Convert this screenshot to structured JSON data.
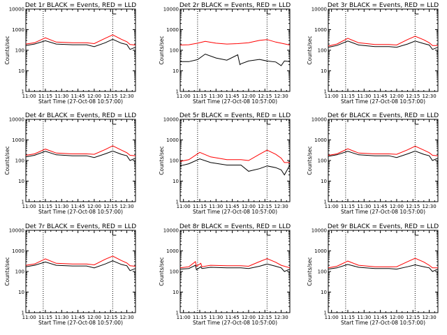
{
  "figure": {
    "colors": {
      "events": "#000000",
      "lld": "#ff0000"
    },
    "y_tick_labels": [
      "1",
      "10",
      "100",
      "1000",
      "10000"
    ],
    "x_tick_labels": [
      "11:00",
      "11:15",
      "11:30",
      "11:45",
      "12:00",
      "12:15",
      "12:30"
    ]
  },
  "chart_data": [
    {
      "type": "line",
      "title": "Det 1r BLACK = Events, RED = LLD",
      "xlabel": "Start Time (27-Oct-08 10:57:00)",
      "ylabel": "Counts/sec",
      "y_scale": "log",
      "ylim": [
        1,
        10000
      ],
      "xlim": [
        "10:57",
        "12:38"
      ],
      "vertical_markers": [
        "11:13",
        "12:17"
      ],
      "series": [
        {
          "name": "Events",
          "x": [
            "10:57",
            "11:05",
            "11:15",
            "11:25",
            "11:40",
            "11:53",
            "12:00",
            "12:10",
            "12:17",
            "12:25",
            "12:30",
            "12:33",
            "12:38"
          ],
          "values": [
            170,
            200,
            290,
            200,
            185,
            185,
            150,
            230,
            340,
            220,
            190,
            110,
            140
          ]
        },
        {
          "name": "LLD",
          "x": [
            "10:57",
            "11:05",
            "11:15",
            "11:25",
            "11:40",
            "11:53",
            "12:00",
            "12:10",
            "12:17",
            "12:25",
            "12:30",
            "12:33",
            "12:38"
          ],
          "values": [
            200,
            230,
            400,
            250,
            230,
            230,
            210,
            380,
            560,
            340,
            260,
            190,
            180
          ]
        }
      ]
    },
    {
      "type": "line",
      "title": "Det 2r BLACK = Events, RED = LLD",
      "xlabel": "Start Time (27-Oct-08 10:57:00)",
      "ylabel": "Counts/sec",
      "y_scale": "log",
      "ylim": [
        1,
        10000
      ],
      "xlim": [
        "10:57",
        "12:38"
      ],
      "vertical_markers": [
        "11:13",
        "12:17"
      ],
      "series": [
        {
          "name": "Events",
          "x": [
            "10:57",
            "11:05",
            "11:13",
            "11:20",
            "11:30",
            "11:40",
            "11:50",
            "11:52",
            "11:53",
            "12:00",
            "12:10",
            "12:17",
            "12:25",
            "12:30",
            "12:33",
            "12:38"
          ],
          "values": [
            28,
            28,
            35,
            65,
            42,
            33,
            60,
            20,
            22,
            30,
            36,
            30,
            27,
            18,
            30,
            28
          ]
        },
        {
          "name": "LLD",
          "x": [
            "10:57",
            "11:05",
            "11:13",
            "11:20",
            "11:30",
            "11:40",
            "11:50",
            "12:00",
            "12:10",
            "12:17",
            "12:25",
            "12:30",
            "12:38"
          ],
          "values": [
            180,
            185,
            220,
            270,
            220,
            200,
            210,
            230,
            300,
            330,
            250,
            220,
            180
          ]
        }
      ]
    },
    {
      "type": "line",
      "title": "Det 3r BLACK = Events, RED = LLD",
      "xlabel": "Start Time (27-Oct-08 10:57:00)",
      "ylabel": "Counts/sec",
      "y_scale": "log",
      "ylim": [
        1,
        10000
      ],
      "xlim": [
        "10:57",
        "12:38"
      ],
      "vertical_markers": [
        "11:13",
        "12:17"
      ],
      "series": [
        {
          "name": "Events",
          "x": [
            "10:57",
            "11:05",
            "11:15",
            "11:25",
            "11:40",
            "11:53",
            "12:00",
            "12:10",
            "12:17",
            "12:25",
            "12:30",
            "12:33",
            "12:38"
          ],
          "values": [
            140,
            170,
            280,
            180,
            150,
            150,
            140,
            200,
            280,
            210,
            180,
            110,
            140
          ]
        },
        {
          "name": "LLD",
          "x": [
            "10:57",
            "11:05",
            "11:15",
            "11:25",
            "11:40",
            "11:53",
            "12:00",
            "12:10",
            "12:17",
            "12:25",
            "12:30",
            "12:33",
            "12:38"
          ],
          "values": [
            160,
            200,
            380,
            230,
            190,
            190,
            180,
            330,
            480,
            320,
            230,
            170,
            170
          ]
        }
      ]
    },
    {
      "type": "line",
      "title": "Det 4r BLACK = Events, RED = LLD",
      "xlabel": "Start Time (27-Oct-08 10:57:00)",
      "ylabel": "Counts/sec",
      "y_scale": "log",
      "ylim": [
        1,
        10000
      ],
      "xlim": [
        "10:57",
        "12:38"
      ],
      "vertical_markers": [
        "11:13",
        "12:17"
      ],
      "series": [
        {
          "name": "Events",
          "x": [
            "10:57",
            "11:05",
            "11:15",
            "11:25",
            "11:40",
            "11:53",
            "12:00",
            "12:10",
            "12:17",
            "12:25",
            "12:30",
            "12:33",
            "12:38"
          ],
          "values": [
            150,
            180,
            280,
            190,
            170,
            170,
            140,
            210,
            290,
            200,
            170,
            100,
            130
          ]
        },
        {
          "name": "LLD",
          "x": [
            "10:57",
            "11:05",
            "11:15",
            "11:25",
            "11:40",
            "11:53",
            "12:00",
            "12:10",
            "12:17",
            "12:25",
            "12:30",
            "12:33",
            "12:38"
          ],
          "values": [
            180,
            210,
            360,
            230,
            210,
            210,
            200,
            340,
            520,
            320,
            240,
            180,
            170
          ]
        }
      ]
    },
    {
      "type": "line",
      "title": "Det 5r BLACK = Events, RED = LLD",
      "xlabel": "Start Time (27-Oct-08 10:57:00)",
      "ylabel": "Counts/sec",
      "y_scale": "log",
      "ylim": [
        1,
        10000
      ],
      "xlim": [
        "10:57",
        "12:38"
      ],
      "vertical_markers": [
        "11:13",
        "12:17"
      ],
      "series": [
        {
          "name": "Events",
          "x": [
            "10:57",
            "11:05",
            "11:15",
            "11:25",
            "11:40",
            "11:53",
            "12:00",
            "12:10",
            "12:17",
            "12:25",
            "12:30",
            "12:33",
            "12:38"
          ],
          "values": [
            55,
            70,
            120,
            80,
            60,
            60,
            30,
            40,
            55,
            45,
            35,
            20,
            60
          ]
        },
        {
          "name": "LLD",
          "x": [
            "10:57",
            "11:05",
            "11:15",
            "11:25",
            "11:40",
            "11:53",
            "12:00",
            "12:10",
            "12:17",
            "12:25",
            "12:30",
            "12:33",
            "12:38"
          ],
          "values": [
            90,
            110,
            250,
            150,
            110,
            110,
            100,
            200,
            320,
            200,
            130,
            80,
            80
          ]
        }
      ]
    },
    {
      "type": "line",
      "title": "Det 6r BLACK = Events, RED = LLD",
      "xlabel": "Start Time (27-Oct-08 10:57:00)",
      "ylabel": "Counts/sec",
      "y_scale": "log",
      "ylim": [
        1,
        10000
      ],
      "xlim": [
        "10:57",
        "12:38"
      ],
      "vertical_markers": [
        "11:13",
        "12:17"
      ],
      "series": [
        {
          "name": "Events",
          "x": [
            "10:57",
            "11:05",
            "11:15",
            "11:25",
            "11:40",
            "11:53",
            "12:00",
            "12:10",
            "12:17",
            "12:25",
            "12:30",
            "12:33",
            "12:38"
          ],
          "values": [
            160,
            190,
            280,
            190,
            170,
            170,
            140,
            210,
            290,
            200,
            170,
            100,
            130
          ]
        },
        {
          "name": "LLD",
          "x": [
            "10:57",
            "11:05",
            "11:15",
            "11:25",
            "11:40",
            "11:53",
            "12:00",
            "12:10",
            "12:17",
            "12:25",
            "12:30",
            "12:33",
            "12:38"
          ],
          "values": [
            180,
            210,
            370,
            230,
            210,
            210,
            200,
            330,
            500,
            320,
            240,
            180,
            170
          ]
        }
      ]
    },
    {
      "type": "line",
      "title": "Det 7r BLACK = Events, RED = LLD",
      "xlabel": "Start Time (27-Oct-08 10:57:00)",
      "ylabel": "Counts/sec",
      "y_scale": "log",
      "ylim": [
        1,
        10000
      ],
      "xlim": [
        "10:57",
        "12:38"
      ],
      "vertical_markers": [
        "11:13",
        "12:17"
      ],
      "series": [
        {
          "name": "Events",
          "x": [
            "10:57",
            "11:05",
            "11:15",
            "11:25",
            "11:40",
            "11:53",
            "12:00",
            "12:10",
            "12:17",
            "12:25",
            "12:30",
            "12:33",
            "12:38"
          ],
          "values": [
            170,
            200,
            290,
            200,
            185,
            185,
            150,
            230,
            330,
            220,
            190,
            110,
            140
          ]
        },
        {
          "name": "LLD",
          "x": [
            "10:57",
            "11:05",
            "11:15",
            "11:25",
            "11:40",
            "11:53",
            "12:00",
            "12:10",
            "12:17",
            "12:25",
            "12:30",
            "12:33",
            "12:38"
          ],
          "values": [
            200,
            230,
            410,
            250,
            230,
            230,
            210,
            390,
            560,
            340,
            260,
            190,
            180
          ]
        }
      ]
    },
    {
      "type": "line",
      "title": "Det 8r BLACK = Events, RED = LLD",
      "xlabel": "Start Time (27-Oct-08 10:57:00)",
      "ylabel": "Counts/sec",
      "y_scale": "log",
      "ylim": [
        1,
        10000
      ],
      "xlim": [
        "10:57",
        "12:38"
      ],
      "vertical_markers": [
        "11:13",
        "12:17"
      ],
      "series": [
        {
          "name": "Events",
          "x": [
            "10:57",
            "11:05",
            "11:11",
            "11:12",
            "11:16",
            "11:17",
            "11:25",
            "11:40",
            "11:53",
            "12:00",
            "12:10",
            "12:17",
            "12:25",
            "12:30",
            "12:33",
            "12:38"
          ],
          "values": [
            130,
            140,
            200,
            120,
            170,
            140,
            160,
            150,
            150,
            140,
            180,
            230,
            180,
            150,
            100,
            130
          ]
        },
        {
          "name": "LLD",
          "x": [
            "10:57",
            "11:05",
            "11:11",
            "11:12",
            "11:16",
            "11:17",
            "11:25",
            "11:40",
            "11:53",
            "12:00",
            "12:10",
            "12:17",
            "12:25",
            "12:30",
            "12:38"
          ],
          "values": [
            150,
            170,
            300,
            180,
            250,
            170,
            200,
            190,
            190,
            180,
            300,
            420,
            280,
            200,
            150
          ]
        }
      ]
    },
    {
      "type": "line",
      "title": "Det 9r BLACK = Events, RED = LLD",
      "xlabel": "Start Time (27-Oct-08 10:57:00)",
      "ylabel": "Counts/sec",
      "y_scale": "log",
      "ylim": [
        1,
        10000
      ],
      "xlim": [
        "10:57",
        "12:38"
      ],
      "vertical_markers": [
        "11:13",
        "12:17"
      ],
      "series": [
        {
          "name": "Events",
          "x": [
            "10:57",
            "11:05",
            "11:15",
            "11:25",
            "11:40",
            "11:53",
            "12:00",
            "12:10",
            "12:17",
            "12:25",
            "12:30",
            "12:33",
            "12:38"
          ],
          "values": [
            130,
            150,
            220,
            160,
            140,
            140,
            130,
            170,
            210,
            170,
            150,
            100,
            130
          ]
        },
        {
          "name": "LLD",
          "x": [
            "10:57",
            "11:05",
            "11:15",
            "11:25",
            "11:40",
            "11:53",
            "12:00",
            "12:10",
            "12:17",
            "12:25",
            "12:30",
            "12:33",
            "12:38"
          ],
          "values": [
            150,
            180,
            320,
            200,
            170,
            170,
            170,
            300,
            440,
            290,
            200,
            150,
            150
          ]
        }
      ]
    }
  ]
}
